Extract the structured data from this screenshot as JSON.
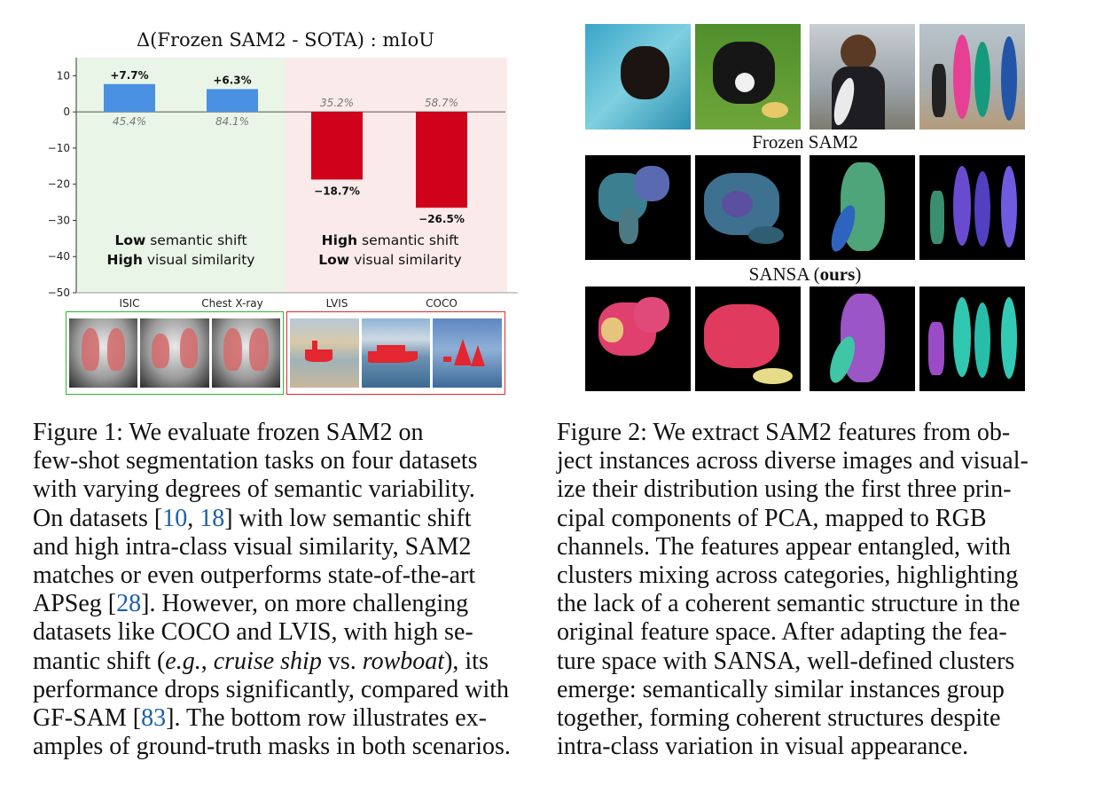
{
  "figure1": {
    "chart_data": {
      "type": "bar",
      "title": "Δ(Frozen SAM2  - SOTA) : mIoU",
      "categories": [
        "ISIC",
        "Chest X-ray",
        "LVIS",
        "COCO"
      ],
      "values": [
        7.7,
        6.3,
        -18.7,
        -26.5
      ],
      "value_labels": [
        "+7.7%",
        "+6.3%",
        "−18.7%",
        "−26.5%"
      ],
      "baseline_labels": [
        "45.4%",
        "84.1%",
        "35.2%",
        "58.7%"
      ],
      "yticks": [
        10,
        0,
        -10,
        -20,
        -30,
        -40,
        -50
      ],
      "ylim": [
        -50,
        15
      ],
      "bar_colors": [
        "#4a90e2",
        "#4a90e2",
        "#d0021b",
        "#d0021b"
      ],
      "region_colors": {
        "low_shift": "#e9f5e6",
        "high_shift": "#fbeaea"
      },
      "regions": [
        {
          "bold": "Low",
          "rest": " semantic shift"
        },
        {
          "bold": "High",
          "rest": " visual similarity"
        },
        {
          "bold": "High",
          "rest": " semantic shift"
        },
        {
          "bold": "Low",
          "rest": " visual similarity"
        }
      ],
      "grid": false
    },
    "caption": {
      "lines": [
        "Figure 1:  We evaluate frozen SAM2 on",
        "few-shot segmentation tasks on four datasets",
        "with varying degrees of semantic variability.",
        "On datasets [",
        "10",
        ", ",
        "18",
        "] with low semantic shift",
        "and high intra-class visual similarity, SAM2",
        "matches or even outperforms state-of-the-art",
        "APSeg [",
        "28",
        "].  However, on more challenging",
        "datasets like COCO and LVIS, with high se-",
        "mantic shift (",
        "e.g.",
        ", ",
        "cruise ship",
        " vs. ",
        "rowboat",
        "), its",
        "performance drops significantly, compared with",
        "GF-SAM [",
        "83",
        "]. The bottom row illustrates ex-",
        "amples of ground-truth masks in both scenarios."
      ]
    }
  },
  "figure2": {
    "label_frozen": "Frozen SAM2",
    "label_sansa_prefix": "SANSA (",
    "label_sansa_bold": "ours",
    "label_sansa_suffix": ")",
    "caption": {
      "lines": [
        "Figure 2: We extract SAM2 features from ob-",
        "ject instances across diverse images and visual-",
        "ize their distribution using the first three prin-",
        "cipal components of PCA, mapped to RGB",
        "channels. The features appear entangled, with",
        "clusters mixing across categories, highlighting",
        "the lack of a coherent semantic structure in the",
        "original feature space. After adapting the fea-",
        "ture space with SANSA, well-defined clusters",
        "emerge: semantically similar instances group",
        "together, forming coherent structures despite",
        "intra-class variation in visual appearance."
      ]
    }
  }
}
